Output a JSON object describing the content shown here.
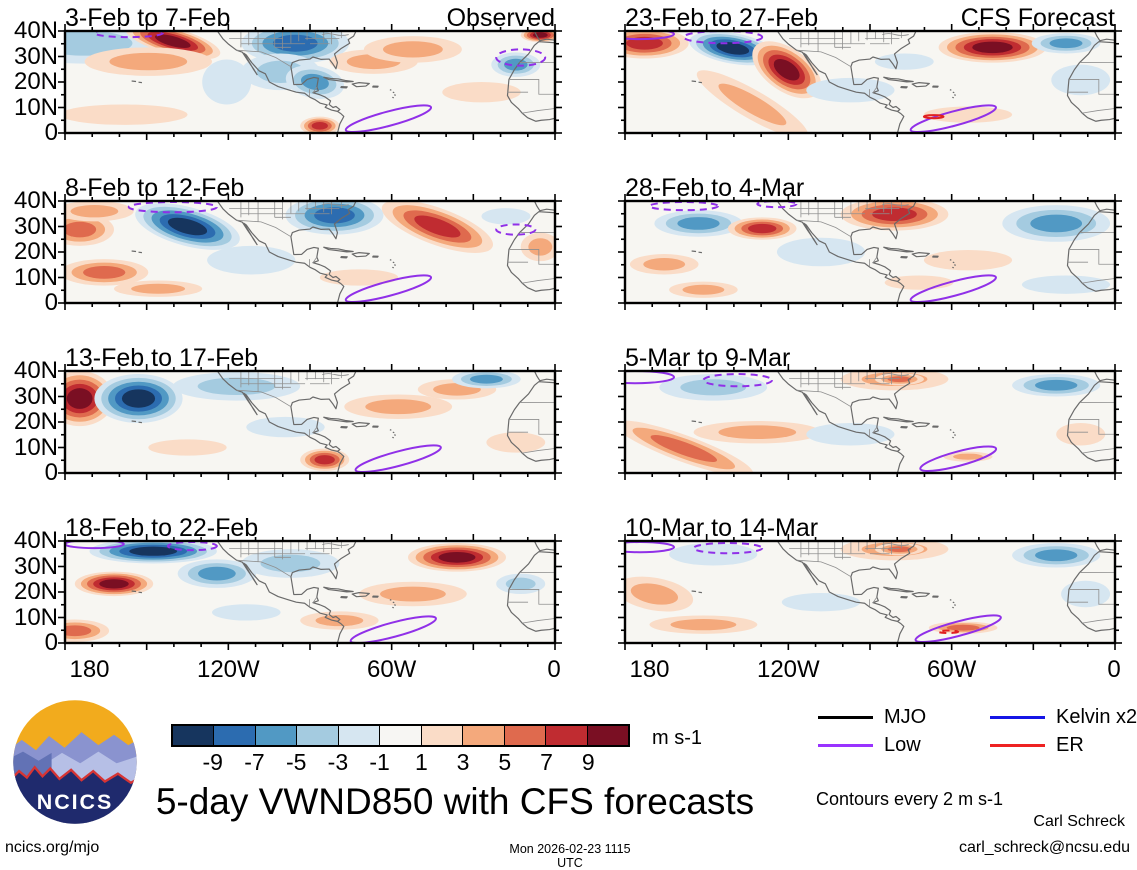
{
  "figure": {
    "title": "5-day VWND850 with CFS forecasts",
    "credit_name": "Carl Schreck",
    "credit_email": "carl_schreck@ncsu.edu",
    "site": "ncics.org/mjo",
    "timestamp": "Mon 2026-02-23 1115 UTC",
    "contour_note": "Contours every 2 m s-1",
    "logo_text": "NCICS"
  },
  "chart_data": {
    "type": "heatmap",
    "variable": "5-day mean VWND850 anomalies with wave contours",
    "column_headers": [
      "Observed",
      "CFS Forecast"
    ],
    "x_ticklabels": [
      "180",
      "120W",
      "60W",
      "0"
    ],
    "y_ticklabels": [
      "40N",
      "30N",
      "20N",
      "10N",
      "0"
    ],
    "lon_range_deg_west": [
      180,
      0
    ],
    "lat_range_deg_north": [
      0,
      40
    ],
    "colorbar": {
      "levels": [
        -9,
        -7,
        -5,
        -3,
        -1,
        1,
        3,
        5,
        7,
        9
      ],
      "colors": [
        "#16355e",
        "#2c6cb0",
        "#5199c4",
        "#a4cbe0",
        "#d6e6f1",
        "#f7f6f3",
        "#fadcc7",
        "#f4a97c",
        "#df6a4e",
        "#c02c31",
        "#7a0f23"
      ],
      "units": "m s-1"
    },
    "legend": [
      {
        "label": "MJO",
        "color": "#000000"
      },
      {
        "label": "Low",
        "color": "#9933ff"
      },
      {
        "label": "Kelvin x2",
        "color": "#1515e6"
      },
      {
        "label": "ER",
        "color": "#ee2222"
      }
    ],
    "feature_format": "[cx_pct, cy_pct, rx_pct, ry_pct, rotation_deg, sign(+1 red/-1 blue), strength_levels]",
    "contour_format": "[cx_pct, cy_pct, rx_pct, ry_pct, rotation_deg, dashed(0/1), color('' = Low purple)]",
    "panels": [
      {
        "title": "3-Feb to 7-Feb",
        "corner": "Observed",
        "col": 0,
        "row": 0,
        "features": [
          [
            4,
            12,
            16,
            20,
            0,
            -1,
            2
          ],
          [
            22,
            10,
            10,
            13,
            15,
            1,
            5
          ],
          [
            17,
            30,
            13,
            14,
            0,
            1,
            2
          ],
          [
            33,
            50,
            5,
            22,
            0,
            -1,
            1
          ],
          [
            47,
            12,
            11,
            20,
            0,
            -1,
            4
          ],
          [
            44,
            40,
            8,
            18,
            0,
            -1,
            2
          ],
          [
            51,
            50,
            6,
            16,
            10,
            -1,
            3
          ],
          [
            63,
            30,
            9,
            12,
            0,
            1,
            2
          ],
          [
            71,
            18,
            10,
            13,
            0,
            1,
            2
          ],
          [
            52,
            93,
            4,
            9,
            0,
            1,
            4
          ],
          [
            12,
            82,
            13,
            10,
            0,
            1,
            1
          ],
          [
            92,
            33,
            5,
            12,
            0,
            -1,
            3
          ],
          [
            97,
            4,
            4,
            7,
            0,
            1,
            5
          ],
          [
            85,
            60,
            8,
            10,
            0,
            1,
            1
          ]
        ],
        "contours": [
          [
            66,
            86,
            9,
            7,
            -15,
            0,
            ""
          ],
          [
            13,
            2,
            7,
            4,
            0,
            1,
            ""
          ],
          [
            93,
            26,
            5,
            8,
            0,
            1,
            ""
          ]
        ]
      },
      {
        "title": "8-Feb to 12-Feb",
        "corner": "",
        "col": 0,
        "row": 1,
        "features": [
          [
            3,
            28,
            7,
            16,
            0,
            1,
            3
          ],
          [
            6,
            10,
            8,
            10,
            0,
            1,
            2
          ],
          [
            25,
            25,
            11,
            19,
            15,
            -1,
            5
          ],
          [
            55,
            14,
            10,
            19,
            0,
            -1,
            4
          ],
          [
            76,
            25,
            12,
            18,
            20,
            1,
            4
          ],
          [
            8,
            70,
            9,
            13,
            0,
            1,
            3
          ],
          [
            19,
            86,
            9,
            8,
            0,
            1,
            2
          ],
          [
            38,
            58,
            9,
            14,
            0,
            -1,
            1
          ],
          [
            97,
            45,
            4,
            14,
            0,
            1,
            2
          ],
          [
            90,
            15,
            5,
            8,
            0,
            -1,
            1
          ],
          [
            60,
            75,
            8,
            8,
            0,
            1,
            1
          ]
        ],
        "contours": [
          [
            66,
            86,
            9,
            7,
            -15,
            0,
            ""
          ],
          [
            22,
            6,
            9,
            5,
            0,
            1,
            ""
          ],
          [
            92,
            28,
            4,
            5,
            0,
            1,
            ""
          ]
        ]
      },
      {
        "title": "13-Feb to 17-Feb",
        "corner": "",
        "col": 0,
        "row": 2,
        "features": [
          [
            3,
            27,
            7,
            27,
            0,
            1,
            5
          ],
          [
            15,
            27,
            9,
            24,
            0,
            -1,
            5
          ],
          [
            35,
            15,
            13,
            14,
            0,
            -1,
            2
          ],
          [
            53,
            87,
            5,
            11,
            0,
            1,
            4
          ],
          [
            68,
            35,
            11,
            12,
            0,
            1,
            2
          ],
          [
            80,
            18,
            8,
            10,
            0,
            1,
            2
          ],
          [
            86,
            8,
            7,
            9,
            0,
            -1,
            3
          ],
          [
            92,
            70,
            6,
            10,
            0,
            1,
            1
          ],
          [
            45,
            55,
            8,
            10,
            0,
            -1,
            1
          ],
          [
            25,
            75,
            8,
            8,
            0,
            1,
            1
          ]
        ],
        "contours": [
          [
            68,
            86,
            9,
            7,
            -15,
            0,
            ""
          ]
        ]
      },
      {
        "title": "18-Feb to 22-Feb",
        "corner": "",
        "col": 0,
        "row": 3,
        "features": [
          [
            18,
            10,
            13,
            12,
            0,
            -1,
            5
          ],
          [
            10,
            42,
            8,
            12,
            0,
            1,
            5
          ],
          [
            31,
            32,
            8,
            14,
            0,
            -1,
            3
          ],
          [
            2,
            88,
            7,
            11,
            0,
            1,
            3
          ],
          [
            46,
            22,
            10,
            14,
            0,
            -1,
            2
          ],
          [
            80,
            16,
            10,
            14,
            0,
            1,
            5
          ],
          [
            71,
            52,
            11,
            12,
            0,
            1,
            2
          ],
          [
            93,
            42,
            5,
            10,
            0,
            -1,
            2
          ],
          [
            56,
            78,
            8,
            9,
            0,
            1,
            2
          ],
          [
            37,
            70,
            7,
            8,
            0,
            -1,
            1
          ]
        ],
        "contours": [
          [
            67,
            87,
            9,
            7,
            -15,
            0,
            ""
          ],
          [
            6,
            3,
            6,
            4,
            0,
            0,
            ""
          ],
          [
            26,
            5,
            5,
            4,
            0,
            1,
            ""
          ]
        ]
      },
      {
        "title": "23-Feb to 27-Feb",
        "corner": "CFS Forecast",
        "col": 1,
        "row": 0,
        "features": [
          [
            4,
            12,
            9,
            15,
            0,
            1,
            4
          ],
          [
            22,
            17,
            9,
            15,
            10,
            -1,
            5
          ],
          [
            33,
            38,
            8,
            21,
            35,
            1,
            5
          ],
          [
            26,
            72,
            13,
            14,
            30,
            1,
            2
          ],
          [
            46,
            58,
            9,
            12,
            0,
            -1,
            1
          ],
          [
            75,
            16,
            11,
            15,
            0,
            1,
            5
          ],
          [
            90,
            12,
            7,
            10,
            0,
            -1,
            3
          ],
          [
            93,
            48,
            6,
            15,
            0,
            -1,
            1
          ],
          [
            70,
            82,
            9,
            8,
            0,
            1,
            1
          ],
          [
            57,
            30,
            6,
            8,
            0,
            -1,
            1
          ]
        ],
        "contours": [
          [
            67,
            86,
            9,
            7,
            -15,
            0,
            ""
          ],
          [
            3,
            3,
            7,
            5,
            0,
            0,
            ""
          ],
          [
            20,
            6,
            8,
            6,
            0,
            1,
            ""
          ],
          [
            63,
            84,
            2,
            1.5,
            0,
            0,
            "#e02020"
          ]
        ]
      },
      {
        "title": "28-Feb to 4-Mar",
        "corner": "",
        "col": 1,
        "row": 1,
        "features": [
          [
            15,
            22,
            9,
            13,
            0,
            -1,
            3
          ],
          [
            28,
            27,
            7,
            11,
            0,
            1,
            4
          ],
          [
            55,
            13,
            11,
            16,
            0,
            1,
            4
          ],
          [
            8,
            62,
            7,
            10,
            0,
            1,
            2
          ],
          [
            16,
            87,
            7,
            8,
            0,
            1,
            2
          ],
          [
            40,
            50,
            9,
            14,
            0,
            -1,
            1
          ],
          [
            88,
            22,
            11,
            18,
            0,
            -1,
            3
          ],
          [
            70,
            58,
            9,
            10,
            0,
            1,
            1
          ],
          [
            90,
            82,
            9,
            9,
            0,
            -1,
            1
          ],
          [
            60,
            80,
            7,
            7,
            0,
            1,
            1
          ]
        ],
        "contours": [
          [
            67,
            86,
            9,
            7,
            -15,
            0,
            ""
          ],
          [
            12,
            5,
            7,
            4,
            0,
            1,
            ""
          ],
          [
            31,
            3,
            4,
            3,
            0,
            1,
            ""
          ]
        ]
      },
      {
        "title": "5-Mar to 9-Mar",
        "corner": "",
        "col": 1,
        "row": 2,
        "features": [
          [
            18,
            16,
            11,
            13,
            0,
            -1,
            2
          ],
          [
            12,
            76,
            15,
            13,
            20,
            1,
            3
          ],
          [
            27,
            60,
            13,
            11,
            0,
            1,
            2
          ],
          [
            55,
            8,
            11,
            11,
            0,
            1,
            2
          ],
          [
            56,
            8,
            5,
            6,
            0,
            1,
            3
          ],
          [
            46,
            62,
            9,
            11,
            0,
            -1,
            1
          ],
          [
            88,
            14,
            9,
            11,
            0,
            -1,
            3
          ],
          [
            93,
            62,
            5,
            11,
            0,
            1,
            1
          ],
          [
            70,
            84,
            5,
            5,
            0,
            1,
            2
          ]
        ],
        "contours": [
          [
            68,
            86,
            8,
            7,
            -15,
            0,
            ""
          ],
          [
            2,
            6,
            8,
            6,
            0,
            0,
            ""
          ],
          [
            23,
            9,
            7,
            6,
            0,
            1,
            ""
          ]
        ]
      },
      {
        "title": "10-Mar to 14-Mar",
        "corner": "",
        "col": 1,
        "row": 3,
        "features": [
          [
            18,
            13,
            9,
            11,
            0,
            -1,
            1
          ],
          [
            6,
            52,
            8,
            16,
            10,
            1,
            2
          ],
          [
            16,
            82,
            11,
            9,
            0,
            1,
            2
          ],
          [
            55,
            8,
            11,
            11,
            0,
            1,
            2
          ],
          [
            56,
            8,
            5,
            6,
            0,
            1,
            3
          ],
          [
            88,
            14,
            9,
            12,
            0,
            -1,
            3
          ],
          [
            94,
            52,
            5,
            13,
            0,
            -1,
            1
          ],
          [
            69,
            85,
            7,
            6,
            0,
            1,
            3
          ],
          [
            40,
            60,
            8,
            9,
            0,
            -1,
            1
          ]
        ],
        "contours": [
          [
            68,
            86,
            9,
            7,
            -15,
            0,
            ""
          ],
          [
            3,
            6,
            7,
            5,
            0,
            0,
            ""
          ],
          [
            21,
            7,
            7,
            5,
            0,
            1,
            ""
          ],
          [
            66,
            89,
            2,
            1.2,
            0,
            1,
            "#e02020"
          ]
        ]
      }
    ]
  }
}
